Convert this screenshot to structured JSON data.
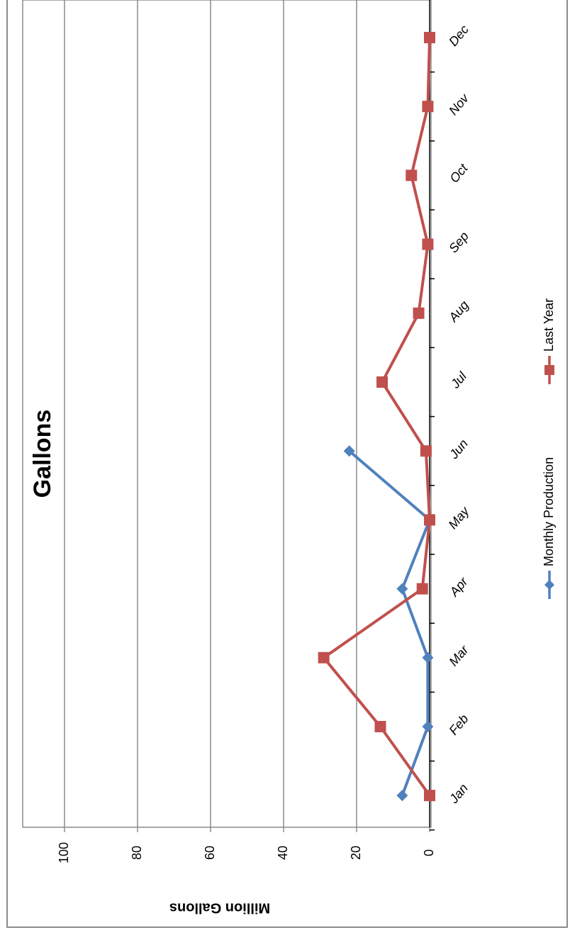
{
  "chart_data": {
    "type": "line",
    "title": "Gallons",
    "ylabel": "Million Gallons",
    "xlabel": "",
    "categories": [
      "Jan",
      "Feb",
      "Mar",
      "Apr",
      "May",
      "Jun",
      "Jul",
      "Aug",
      "Sep",
      "Oct",
      "Nov",
      "Dec"
    ],
    "ylim": [
      0,
      110
    ],
    "y_ticks": [
      0,
      20,
      40,
      60,
      80,
      100
    ],
    "grid": true,
    "legend_position": "bottom",
    "series": [
      {
        "name": "Monthly Production",
        "color": "#4F81BD",
        "marker": "diamond",
        "values": [
          7.5,
          0.5,
          0.5,
          7.5,
          0,
          22,
          null,
          null,
          null,
          null,
          null,
          null
        ]
      },
      {
        "name": "Last Year",
        "color": "#C0504D",
        "marker": "square",
        "values": [
          0,
          13.5,
          29,
          2,
          0,
          1,
          13,
          3,
          0.5,
          5,
          0.5,
          0
        ]
      }
    ]
  }
}
